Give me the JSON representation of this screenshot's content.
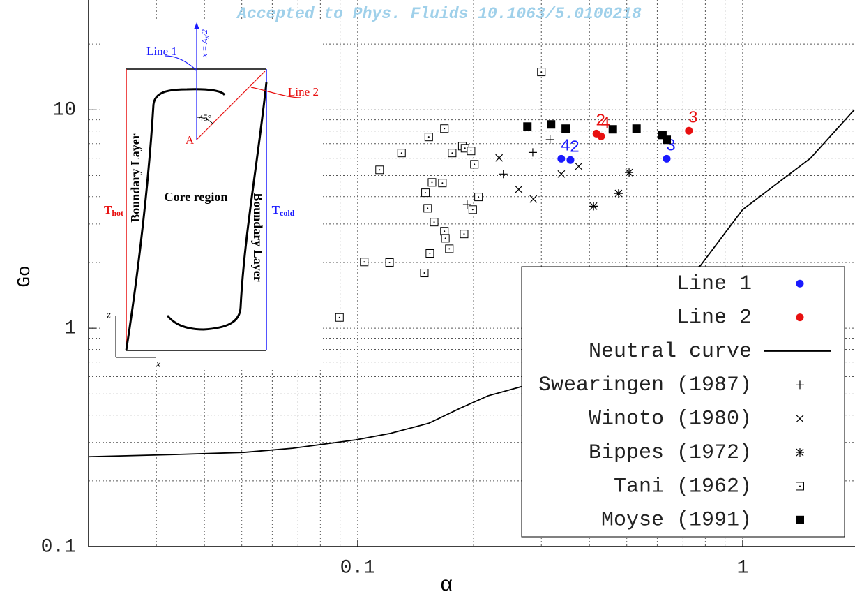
{
  "chart_data": {
    "type": "scatter",
    "title": "Accepted to Phys. Fluids 10.1063/5.0100218",
    "x_label": "α",
    "y_label": "Go",
    "log_x": true,
    "log_y": true,
    "xlim": [
      0.02,
      1.95
    ],
    "ylim": [
      0.1,
      30
    ],
    "xticks": [
      0.1,
      1
    ],
    "yticks": [
      0.1,
      1,
      10
    ],
    "minor_xticks": [
      0.03,
      0.04,
      0.05,
      0.06,
      0.07,
      0.08,
      0.09,
      0.2,
      0.3,
      0.4,
      0.5,
      0.6,
      0.7,
      0.8,
      0.9
    ],
    "minor_yticks": [
      0.2,
      0.3,
      0.4,
      0.5,
      0.6,
      0.7,
      0.8,
      0.9,
      2,
      3,
      4,
      5,
      6,
      7,
      8,
      9,
      20
    ],
    "grid": true,
    "legend": "lower right",
    "series": [
      {
        "name": "Line 1",
        "marker": "circle",
        "color": "#1a1aff",
        "x": [
          0.338,
          0.357,
          0.635
        ],
        "values": [
          5.97,
          5.89,
          5.97
        ],
        "labels": [
          "4",
          "2",
          "3"
        ]
      },
      {
        "name": "Line 2",
        "marker": "circle",
        "color": "#e81010",
        "x": [
          0.417,
          0.429,
          0.725
        ],
        "values": [
          7.78,
          7.56,
          8.02
        ],
        "labels": [
          "2",
          "4",
          "3"
        ]
      },
      {
        "name": "Neutral curve",
        "marker": "line",
        "color": "#000000",
        "x": [
          0.02,
          0.0334,
          0.0507,
          0.0678,
          0.0988,
          0.1217,
          0.153,
          0.1846,
          0.218,
          0.269,
          0.4,
          0.55,
          0.778,
          1.0,
          1.5,
          1.95
        ],
        "values": [
          0.258,
          0.264,
          0.27,
          0.282,
          0.308,
          0.33,
          0.367,
          0.43,
          0.49,
          0.543,
          0.85,
          1.25,
          1.94,
          3.49,
          6.0,
          10
        ]
      },
      {
        "name": "Swearingen (1987)",
        "marker": "plus",
        "color": "#000000",
        "x": [
          0.285,
          0.316,
          0.239,
          0.1925
        ],
        "values": [
          6.38,
          7.3,
          5.08,
          3.68
        ]
      },
      {
        "name": "Winoto (1980)",
        "marker": "cross",
        "color": "#000000",
        "x": [
          0.233,
          0.262,
          0.286,
          0.338,
          0.375
        ],
        "values": [
          6.02,
          4.32,
          3.9,
          5.08,
          5.51
        ]
      },
      {
        "name": "Bippes (1972)",
        "marker": "star",
        "color": "#000000",
        "x": [
          0.41,
          0.476,
          0.507
        ],
        "values": [
          3.62,
          4.14,
          5.16
        ]
      },
      {
        "name": "Tani (1962)",
        "marker": "dotsquare",
        "color": "#000000",
        "x": [
          0.3,
          0.168,
          0.153,
          0.13,
          0.187,
          0.19,
          0.176,
          0.197,
          0.114,
          0.201,
          0.156,
          0.166,
          0.15,
          0.206,
          0.152,
          0.199,
          0.158,
          0.168,
          0.169,
          0.189,
          0.154,
          0.173,
          0.104,
          0.121,
          0.149,
          0.0897
        ],
        "values": [
          14.9,
          8.2,
          7.51,
          6.34,
          6.82,
          6.67,
          6.34,
          6.48,
          5.31,
          5.63,
          4.65,
          4.62,
          4.17,
          3.99,
          3.54,
          3.49,
          3.06,
          2.78,
          2.58,
          2.7,
          2.2,
          2.31,
          2.01,
          2.0,
          1.79,
          1.12
        ]
      },
      {
        "name": "Moyse (1991)",
        "marker": "square",
        "color": "#000000",
        "x": [
          0.276,
          0.318,
          0.347,
          0.46,
          0.53,
          0.619,
          0.635
        ],
        "values": [
          8.38,
          8.57,
          8.2,
          8.14,
          8.2,
          7.67,
          7.29
        ]
      }
    ]
  },
  "inset": {
    "line1": "Line 1",
    "line2": "Line 2",
    "x_eq": [
      "x = A",
      "x",
      "/2"
    ],
    "angle": "45°",
    "point": "A",
    "left_layer": "Boundary Layer",
    "core": "Core region",
    "right_layer": "Boundary Layer",
    "t_hot": [
      "T",
      "hot"
    ],
    "t_cold": [
      "T",
      "cold"
    ],
    "z_axis": "z",
    "x_axis": "x"
  }
}
